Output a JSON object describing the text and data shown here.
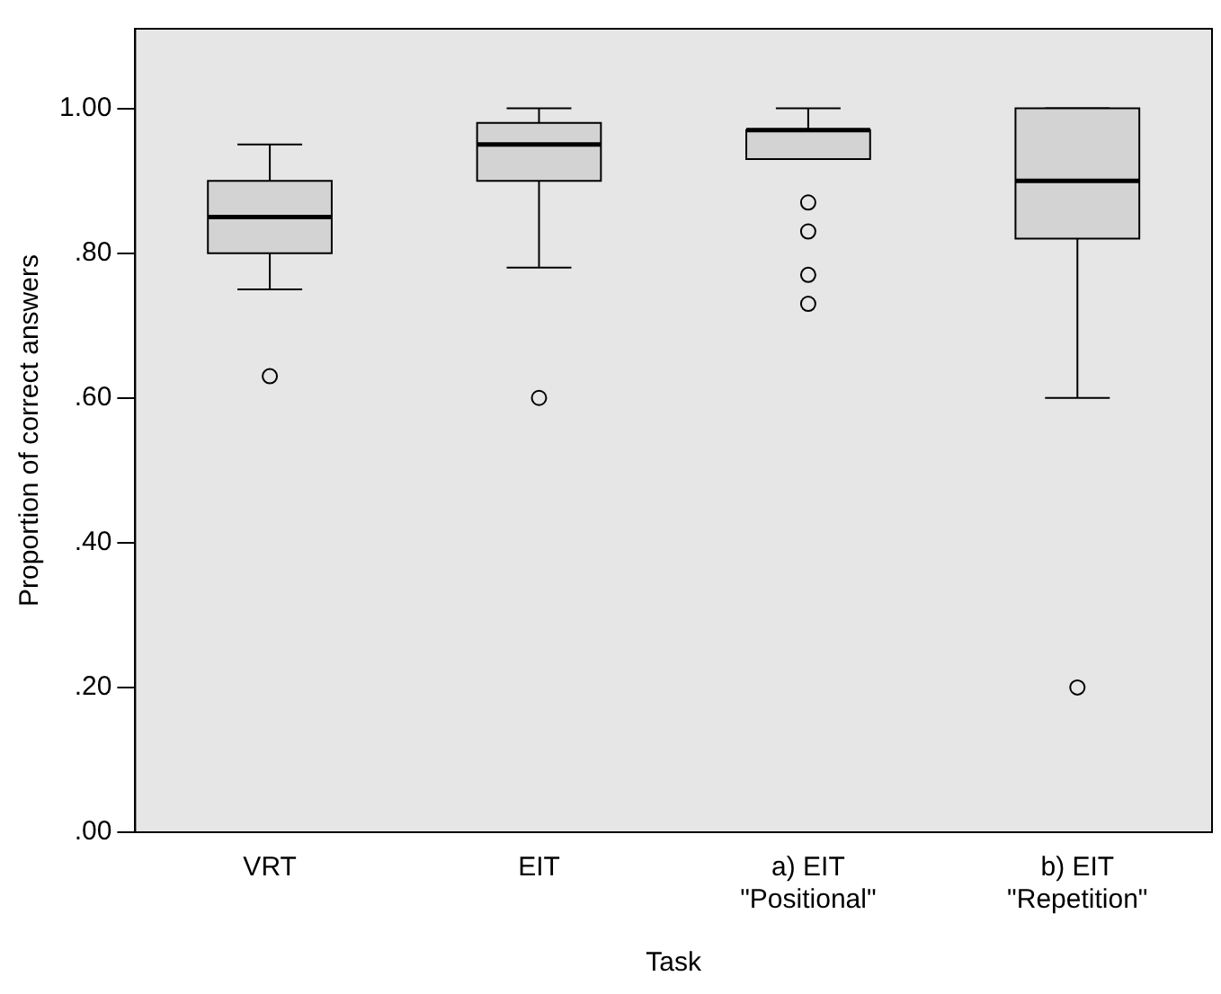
{
  "chart_data": {
    "type": "box",
    "xlabel": "Task",
    "ylabel": "Proportion of correct answers",
    "categories": [
      "VRT",
      "EIT",
      "a) EIT\n\"Positional\"",
      "b) EIT\n\"Repetition\""
    ],
    "boxes": [
      {
        "low": 0.75,
        "q1": 0.8,
        "median": 0.85,
        "q3": 0.9,
        "high": 0.95,
        "outliers": [
          0.63
        ]
      },
      {
        "low": 0.78,
        "q1": 0.9,
        "median": 0.95,
        "q3": 0.98,
        "high": 1.0,
        "outliers": [
          0.6
        ]
      },
      {
        "low": 0.93,
        "q1": 0.93,
        "median": 0.97,
        "q3": 0.97,
        "high": 1.0,
        "outliers": [
          0.87,
          0.83,
          0.77,
          0.73
        ]
      },
      {
        "low": 0.6,
        "q1": 0.82,
        "median": 0.9,
        "q3": 1.0,
        "high": 1.0,
        "outliers": [
          0.2
        ]
      }
    ],
    "color": "#d3d3d3",
    "ylim": [
      0,
      1.11
    ],
    "yticks": [
      {
        "value": 0,
        "label": ".00"
      },
      {
        "value": 0.2,
        "label": ".20"
      },
      {
        "value": 0.4,
        "label": ".40"
      },
      {
        "value": 0.6,
        "label": ".60"
      },
      {
        "value": 0.8,
        "label": ".80"
      },
      {
        "value": 1,
        "label": "1.00"
      }
    ],
    "grid": false,
    "legend": false
  }
}
